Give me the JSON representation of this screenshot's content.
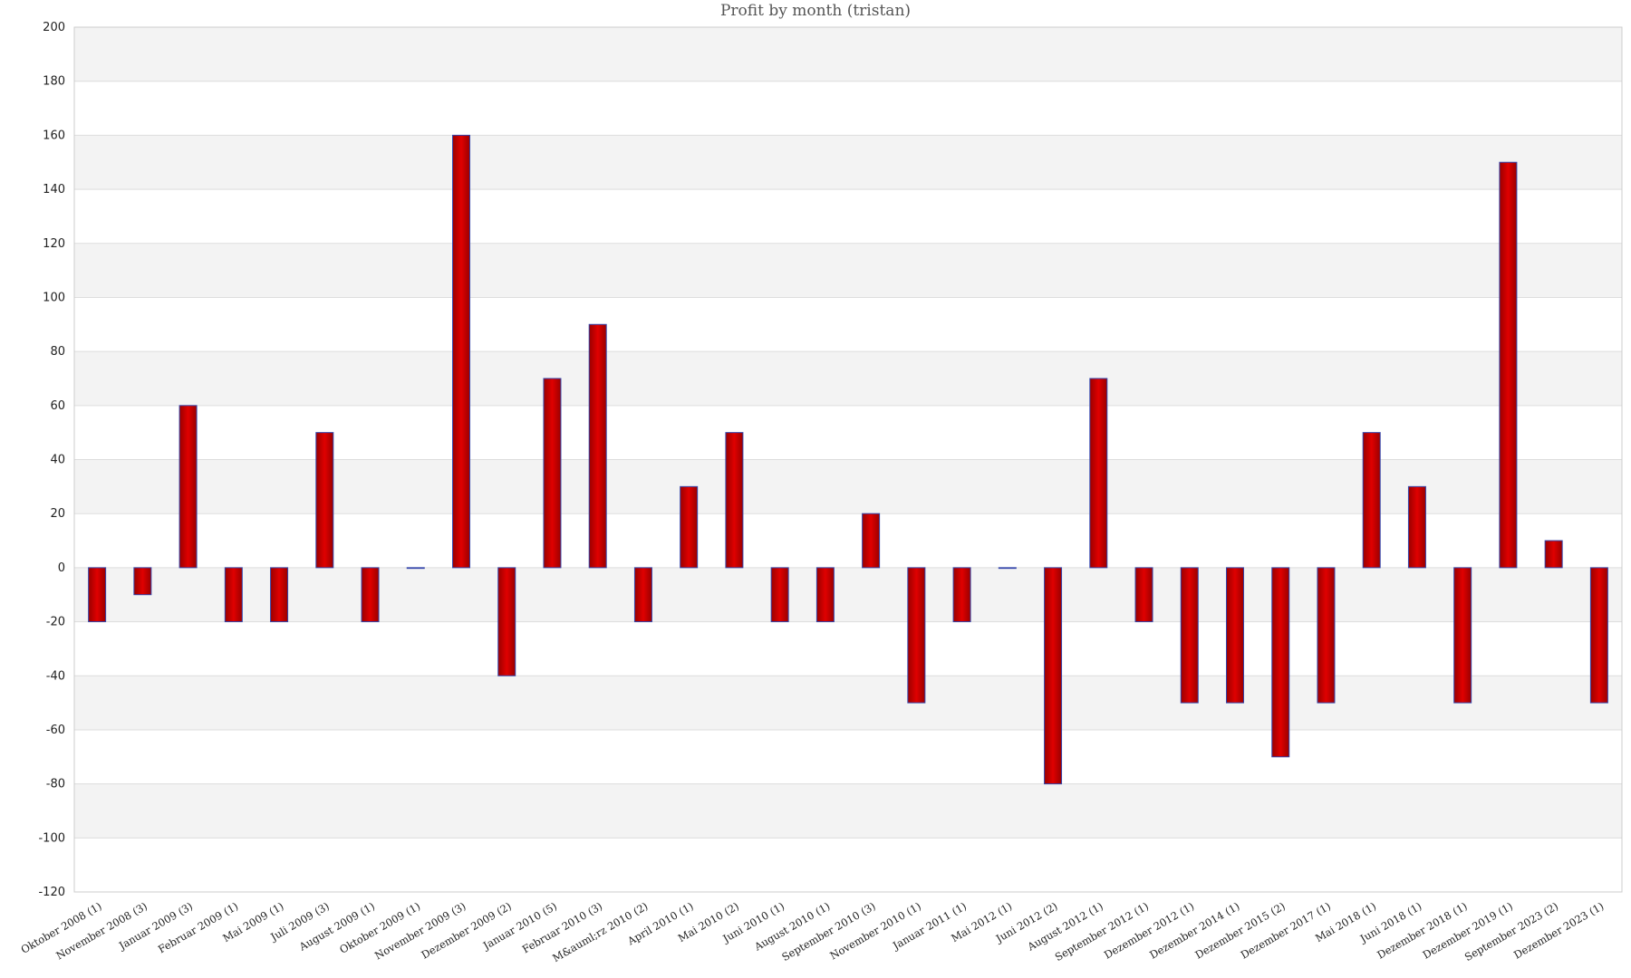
{
  "chart_data": {
    "type": "bar",
    "title": "Profit by month  (tristan)",
    "xlabel": "",
    "ylabel": "",
    "ylim": [
      -120,
      200
    ],
    "yticks": [
      200,
      180,
      160,
      140,
      120,
      100,
      80,
      60,
      40,
      20,
      0,
      -20,
      -40,
      -60,
      -80,
      -100,
      -120
    ],
    "grid": true,
    "legend": "none",
    "bar_color": "#e00000",
    "bar_edge_color": "#3344aa",
    "band_color": "#f3f3f3",
    "categories": [
      "Oktober 2008 (1)",
      "November 2008 (3)",
      "Januar 2009 (3)",
      "Februar 2009 (1)",
      "Mai 2009 (1)",
      "Juli 2009 (3)",
      "August 2009 (1)",
      "Oktober 2009 (1)",
      "November 2009 (3)",
      "Dezember 2009 (2)",
      "Januar 2010 (5)",
      "Februar 2010 (3)",
      "M&auml;rz 2010 (2)",
      "April 2010 (1)",
      "Mai 2010 (2)",
      "Juni 2010 (1)",
      "August 2010 (1)",
      "September 2010 (3)",
      "November 2010 (1)",
      "Januar 2011 (1)",
      "Mai 2012 (1)",
      "Juni 2012 (2)",
      "August 2012 (1)",
      "September 2012 (1)",
      "Dezember 2012 (1)",
      "Dezember 2014 (1)",
      "Dezember 2015 (2)",
      "Dezember 2017 (1)",
      "Mai 2018 (1)",
      "Juni 2018 (1)",
      "Dezember 2018 (1)",
      "Dezember 2019 (1)",
      "September 2023 (2)",
      "Dezember 2023 (1)"
    ],
    "values": [
      -20,
      -10,
      60,
      -20,
      -20,
      50,
      -20,
      0,
      160,
      -40,
      70,
      90,
      -20,
      30,
      50,
      -20,
      -20,
      20,
      -50,
      -20,
      0,
      -80,
      70,
      -20,
      -50,
      -50,
      -70,
      -50,
      50,
      30,
      -50,
      150,
      10,
      -50
    ]
  }
}
